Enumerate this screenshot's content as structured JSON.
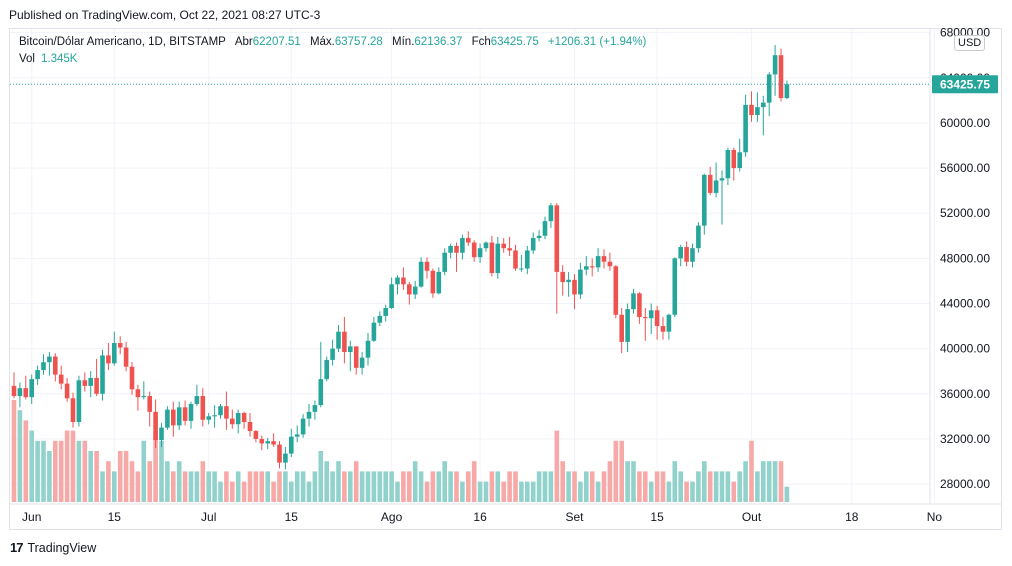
{
  "header": {
    "published": "Published on TradingView.com, Oct 22, 2021 08:27 UTC-3"
  },
  "legend": {
    "symbol": "Bitcoin/Dólar Americano, 1D, BITSTAMP",
    "open_label": "Abr",
    "open_value": "62207.51",
    "high_label": "Máx.",
    "high_value": "63757.28",
    "low_label": "Mín.",
    "low_value": "62136.37",
    "close_label": "Fch",
    "close_value": "63425.75",
    "change": "+1206.31 (+1.94%)",
    "volume_label": "Vol",
    "volume_value": "1.345K"
  },
  "currency_button": "USD",
  "last_price_label": "63425.75",
  "footer": {
    "brand": "TradingView",
    "logo_glyph": "17"
  },
  "colors": {
    "up": "#26a69a",
    "down": "#ef5350",
    "up_volume": "#92d2cc",
    "down_volume": "#f7a9a7",
    "grid": "#f0f3fa"
  },
  "chart_data": {
    "type": "candlestick",
    "title": "Bitcoin/Dólar Americano, 1D, BITSTAMP",
    "ylim": [
      26500,
      68500
    ],
    "y_ticks": [
      28000,
      32000,
      36000,
      40000,
      44000,
      48000,
      52000,
      56000,
      60000,
      64000,
      68000
    ],
    "y_tick_labels": [
      "28000.00",
      "32000.00",
      "36000.00",
      "40000.00",
      "44000.00",
      "48000.00",
      "52000.00",
      "56000.00",
      "60000.00",
      "64000.00",
      "68000.00"
    ],
    "x_ticks": [
      {
        "label": "Jun",
        "index": 3
      },
      {
        "label": "15",
        "index": 17
      },
      {
        "label": "Jul",
        "index": 33
      },
      {
        "label": "15",
        "index": 47
      },
      {
        "label": "Ago",
        "index": 64
      },
      {
        "label": "16",
        "index": 79
      },
      {
        "label": "Set",
        "index": 95
      },
      {
        "label": "15",
        "index": 109
      },
      {
        "label": "Out",
        "index": 125
      },
      {
        "label": "18",
        "index": 142
      },
      {
        "label": "No",
        "index": 156
      }
    ],
    "last_price": 63425.75,
    "grid": true,
    "ohlcv": [
      [
        36700,
        37900,
        35600,
        35800,
        10
      ],
      [
        35800,
        37000,
        34800,
        36500,
        9
      ],
      [
        36500,
        37600,
        35500,
        35700,
        8
      ],
      [
        35700,
        37700,
        35100,
        37300,
        7
      ],
      [
        37300,
        38500,
        36800,
        38100,
        6
      ],
      [
        38100,
        39500,
        37700,
        38800,
        6
      ],
      [
        38800,
        39700,
        37600,
        39300,
        5
      ],
      [
        39300,
        39600,
        37100,
        37700,
        6
      ],
      [
        37700,
        38500,
        36400,
        36900,
        6
      ],
      [
        36900,
        37400,
        35300,
        35600,
        7
      ],
      [
        35600,
        36100,
        33000,
        33500,
        7
      ],
      [
        33500,
        37600,
        33100,
        37200,
        6
      ],
      [
        37200,
        37900,
        36200,
        36700,
        6
      ],
      [
        36700,
        38000,
        35700,
        37400,
        5
      ],
      [
        37400,
        39100,
        35800,
        36000,
        5
      ],
      [
        36000,
        39900,
        35400,
        39400,
        3
      ],
      [
        39400,
        40500,
        38100,
        38700,
        4
      ],
      [
        38700,
        41500,
        38500,
        40500,
        3
      ],
      [
        40500,
        41100,
        39500,
        40100,
        5
      ],
      [
        40100,
        40600,
        38000,
        38400,
        5
      ],
      [
        38400,
        38800,
        35900,
        36400,
        4
      ],
      [
        36400,
        36800,
        34500,
        35700,
        3
      ],
      [
        35700,
        37100,
        35500,
        35800,
        6
      ],
      [
        35800,
        36200,
        33100,
        34400,
        4
      ],
      [
        34400,
        35500,
        31200,
        31900,
        7
      ],
      [
        31900,
        33400,
        31300,
        33000,
        6
      ],
      [
        33000,
        34900,
        32800,
        34600,
        4
      ],
      [
        34600,
        35300,
        32200,
        33200,
        3
      ],
      [
        33200,
        35300,
        32800,
        34800,
        4
      ],
      [
        34800,
        35400,
        33200,
        33600,
        3
      ],
      [
        33600,
        35300,
        32900,
        35100,
        3
      ],
      [
        35100,
        36800,
        34900,
        35800,
        3
      ],
      [
        35800,
        36500,
        33100,
        33700,
        4
      ],
      [
        33700,
        34300,
        33300,
        34000,
        3
      ],
      [
        34000,
        35000,
        33000,
        34100,
        3
      ],
      [
        34100,
        35100,
        33800,
        34900,
        2
      ],
      [
        34900,
        36200,
        32800,
        33800,
        3
      ],
      [
        33800,
        34600,
        32900,
        33300,
        2
      ],
      [
        33300,
        34600,
        32500,
        34300,
        3
      ],
      [
        34300,
        34400,
        32900,
        33500,
        2
      ],
      [
        33500,
        34300,
        32200,
        32700,
        3
      ],
      [
        32700,
        32800,
        31700,
        32000,
        3
      ],
      [
        32000,
        32300,
        31000,
        31600,
        3
      ],
      [
        31600,
        32100,
        31100,
        31800,
        3
      ],
      [
        31800,
        32500,
        31300,
        31500,
        2
      ],
      [
        31500,
        31800,
        29400,
        29900,
        3
      ],
      [
        29900,
        31300,
        29300,
        30700,
        3
      ],
      [
        30700,
        32900,
        30400,
        32200,
        2
      ],
      [
        32200,
        33200,
        31700,
        32400,
        3
      ],
      [
        32400,
        34200,
        32100,
        33800,
        3
      ],
      [
        33800,
        35100,
        33100,
        34400,
        2
      ],
      [
        34400,
        35400,
        33700,
        35000,
        3
      ],
      [
        35000,
        40600,
        34800,
        37300,
        5
      ],
      [
        37300,
        39300,
        37100,
        39000,
        4
      ],
      [
        39000,
        40800,
        38500,
        40000,
        3
      ],
      [
        40000,
        42100,
        39700,
        41500,
        4
      ],
      [
        41500,
        42800,
        38700,
        39700,
        3
      ],
      [
        39700,
        40700,
        38000,
        40200,
        3
      ],
      [
        40200,
        40200,
        37700,
        38300,
        4
      ],
      [
        38300,
        39700,
        37700,
        39200,
        3
      ],
      [
        39200,
        41400,
        38500,
        40700,
        3
      ],
      [
        40700,
        42800,
        40600,
        42300,
        3
      ],
      [
        42300,
        43300,
        42000,
        42900,
        3
      ],
      [
        42900,
        43900,
        42400,
        43600,
        3
      ],
      [
        43600,
        46300,
        43500,
        45700,
        3
      ],
      [
        45700,
        46500,
        44800,
        46300,
        2
      ],
      [
        46300,
        47200,
        45200,
        45700,
        3
      ],
      [
        45700,
        45900,
        43900,
        44800,
        3
      ],
      [
        44800,
        46000,
        44400,
        45500,
        4
      ],
      [
        45500,
        48100,
        45400,
        47700,
        3
      ],
      [
        47700,
        48100,
        46200,
        46900,
        2
      ],
      [
        46900,
        47100,
        44500,
        44900,
        3
      ],
      [
        44900,
        47200,
        44800,
        46800,
        3
      ],
      [
        46800,
        48900,
        46500,
        48500,
        4
      ],
      [
        48500,
        49300,
        48000,
        49100,
        3
      ],
      [
        49100,
        49400,
        46800,
        48500,
        3
      ],
      [
        48500,
        50100,
        47900,
        49800,
        2
      ],
      [
        49800,
        50400,
        49100,
        49400,
        3
      ],
      [
        49400,
        49600,
        47700,
        48100,
        4
      ],
      [
        48100,
        49300,
        47600,
        48900,
        2
      ],
      [
        48900,
        49500,
        48600,
        49400,
        2
      ],
      [
        49400,
        50000,
        46400,
        46700,
        3
      ],
      [
        46700,
        49900,
        46200,
        49300,
        3
      ],
      [
        49300,
        49800,
        48500,
        48900,
        2
      ],
      [
        48900,
        49900,
        48200,
        48700,
        3
      ],
      [
        48700,
        49200,
        46900,
        47100,
        3
      ],
      [
        47100,
        48300,
        46800,
        47100,
        2
      ],
      [
        47100,
        49100,
        46600,
        48700,
        2
      ],
      [
        48700,
        50300,
        48400,
        49800,
        2
      ],
      [
        49800,
        50500,
        49500,
        50000,
        3
      ],
      [
        50000,
        51700,
        49700,
        51300,
        3
      ],
      [
        51300,
        52900,
        50700,
        52700,
        3
      ],
      [
        52700,
        52900,
        43100,
        46800,
        7
      ],
      [
        46800,
        47400,
        44700,
        45900,
        4
      ],
      [
        45900,
        46800,
        44600,
        46100,
        3
      ],
      [
        46100,
        46600,
        43500,
        44800,
        3
      ],
      [
        44800,
        47600,
        44400,
        47000,
        2
      ],
      [
        47000,
        48200,
        46500,
        47300,
        3
      ],
      [
        47300,
        48000,
        46400,
        47200,
        3
      ],
      [
        47200,
        48900,
        46800,
        48200,
        2
      ],
      [
        48200,
        48800,
        47100,
        47700,
        3
      ],
      [
        47700,
        48500,
        46900,
        47300,
        4
      ],
      [
        47300,
        47400,
        42700,
        43000,
        6
      ],
      [
        43000,
        43600,
        39600,
        40600,
        6
      ],
      [
        40600,
        44000,
        39700,
        43500,
        4
      ],
      [
        43500,
        45300,
        43100,
        44900,
        4
      ],
      [
        44900,
        45000,
        42200,
        42800,
        3
      ],
      [
        42800,
        43600,
        40700,
        42700,
        3
      ],
      [
        42700,
        44000,
        41300,
        43400,
        2
      ],
      [
        43400,
        43800,
        40800,
        42000,
        3
      ],
      [
        42000,
        42800,
        40800,
        41500,
        3
      ],
      [
        41500,
        43100,
        40800,
        43000,
        2
      ],
      [
        43000,
        48100,
        42800,
        48000,
        4
      ],
      [
        48000,
        49200,
        47300,
        49000,
        3
      ],
      [
        49000,
        49500,
        47300,
        47700,
        2
      ],
      [
        47700,
        49300,
        47200,
        48900,
        2
      ],
      [
        48900,
        51200,
        48500,
        50900,
        3
      ],
      [
        50900,
        55500,
        50100,
        55400,
        4
      ],
      [
        55400,
        56100,
        53600,
        53800,
        3
      ],
      [
        53800,
        56500,
        53400,
        54900,
        3
      ],
      [
        54900,
        55800,
        51000,
        55100,
        3
      ],
      [
        55100,
        57800,
        54500,
        57600,
        3
      ],
      [
        57600,
        57800,
        54900,
        56000,
        2
      ],
      [
        56000,
        58600,
        55700,
        57400,
        3
      ],
      [
        57400,
        62500,
        57000,
        61600,
        4
      ],
      [
        61600,
        62800,
        60100,
        60700,
        6
      ],
      [
        60700,
        62700,
        60100,
        61400,
        3
      ],
      [
        61400,
        62400,
        58900,
        61800,
        4
      ],
      [
        61800,
        64500,
        60600,
        64300,
        4
      ],
      [
        64300,
        66900,
        62400,
        66000,
        4
      ],
      [
        66000,
        66600,
        61900,
        62200,
        4
      ],
      [
        62200,
        63760,
        62100,
        63425,
        1.5
      ]
    ]
  }
}
